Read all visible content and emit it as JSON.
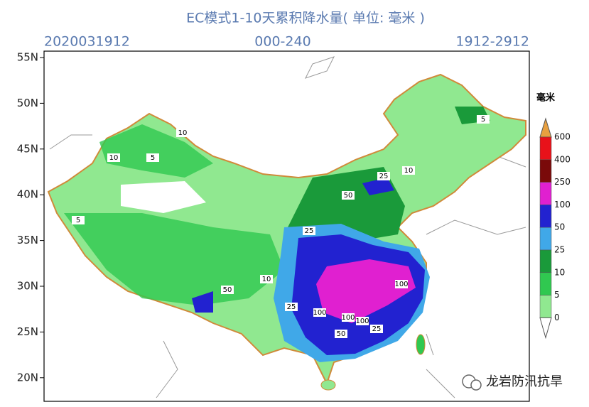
{
  "header": {
    "title": "EC模式1-10天累积降水量( 单位: 毫米 )",
    "left": "2020031912",
    "center": "000-240",
    "right": "1912-2912"
  },
  "lat_labels": [
    "55N",
    "50N",
    "45N",
    "40N",
    "35N",
    "30N",
    "25N",
    "20N"
  ],
  "colorbar": {
    "unit": "毫米",
    "levels": [
      600,
      400,
      250,
      100,
      50,
      25,
      10,
      5,
      0
    ],
    "colors": [
      "#e8a040",
      "#e8121a",
      "#7a0a0a",
      "#e020d0",
      "#2222d0",
      "#40a8e8",
      "#1a9a3a",
      "#30c850",
      "#90e890",
      "#ffffff"
    ]
  },
  "contour_labels": [
    "10",
    "5",
    "10",
    "5",
    "25",
    "50",
    "10",
    "5",
    "25",
    "50",
    "100",
    "100",
    "100",
    "100",
    "25",
    "50",
    "10",
    "25"
  ],
  "watermark": "龙岩防汛抗旱"
}
